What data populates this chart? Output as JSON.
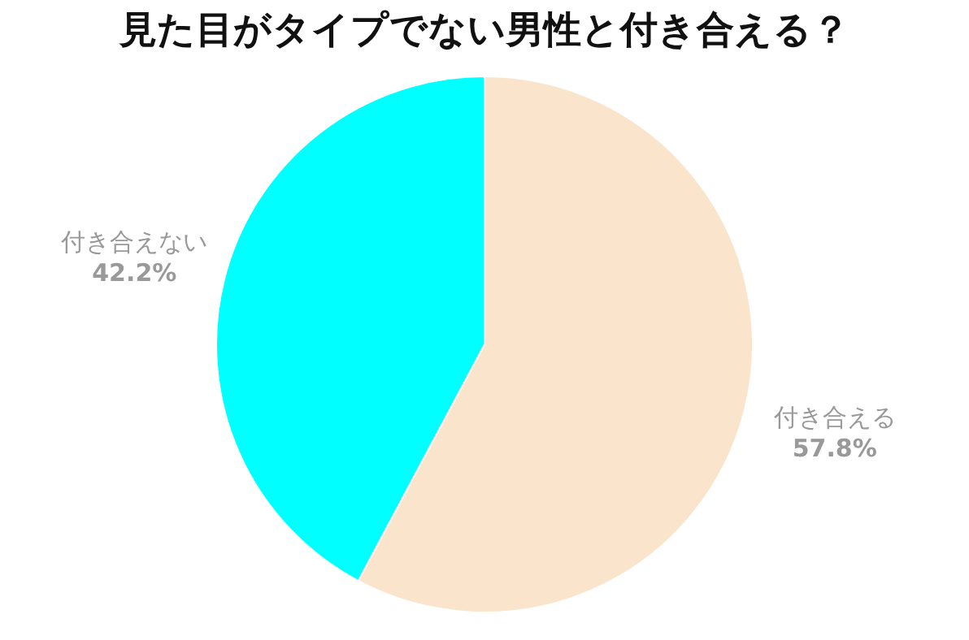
{
  "chart_data": {
    "type": "pie",
    "title": "見た目がタイプでない男性と付き合える？",
    "categories": [
      "付き合える",
      "付き合えない"
    ],
    "values": [
      57.8,
      42.2
    ],
    "colors": [
      "#fae5cc",
      "#00ffff"
    ],
    "value_labels": [
      "57.8%",
      "42.2%"
    ],
    "legend": false
  }
}
